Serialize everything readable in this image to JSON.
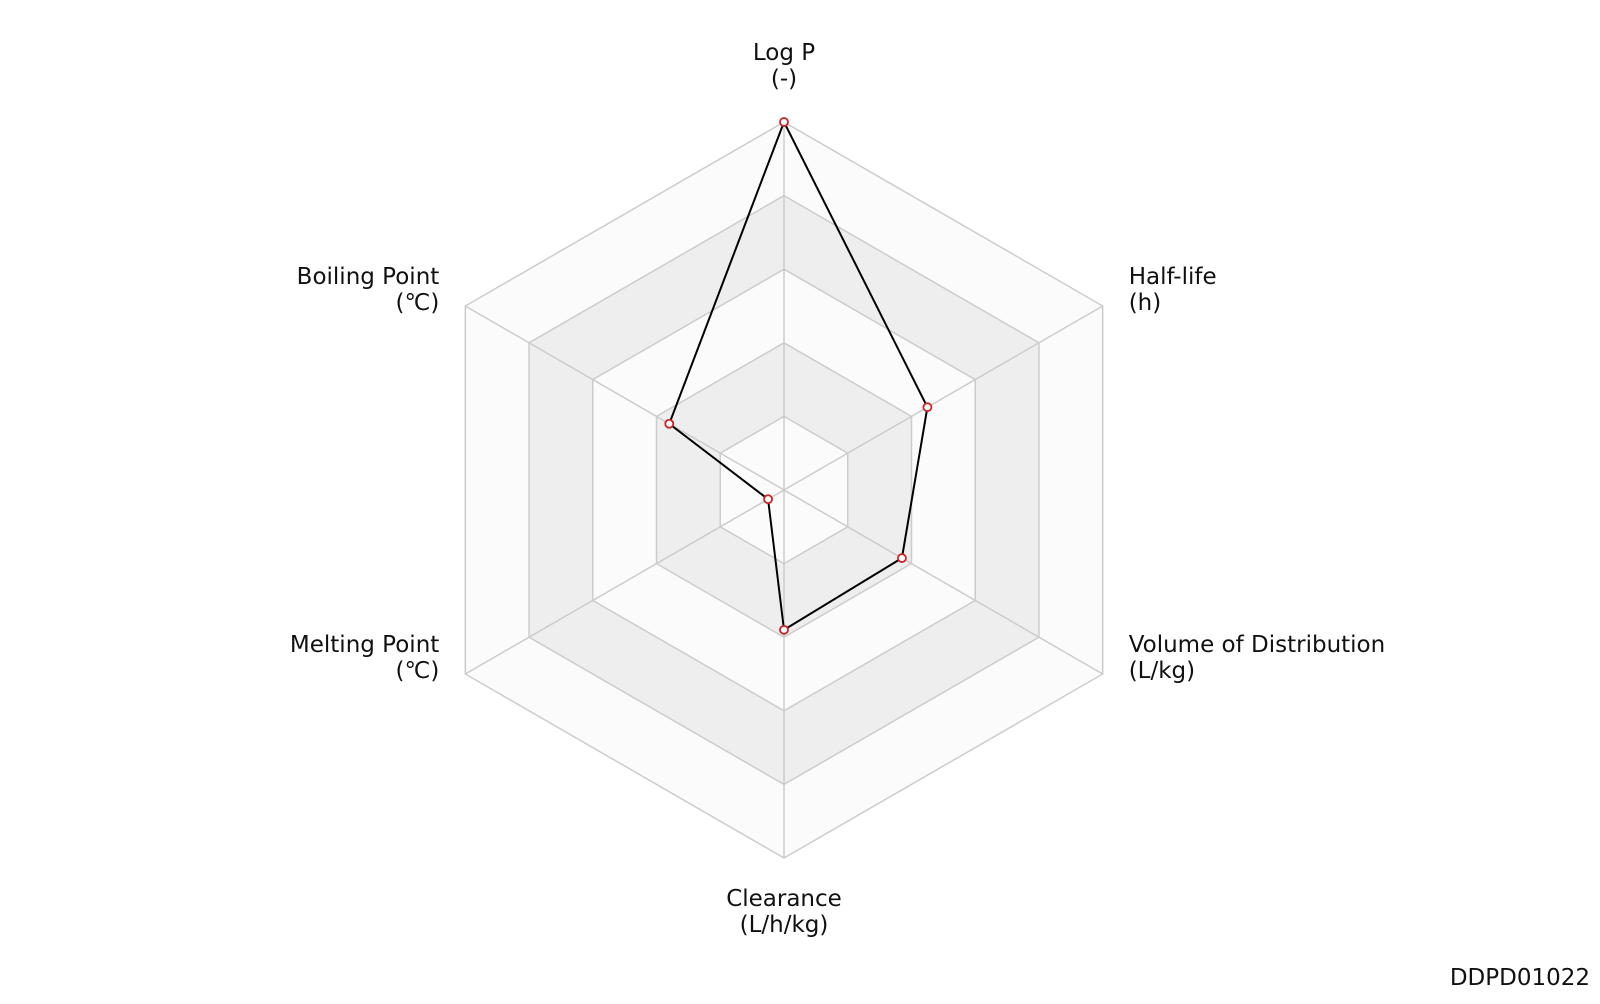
{
  "chart_data": {
    "type": "radar",
    "axes": [
      {
        "name": "Log P",
        "unit": "(-)"
      },
      {
        "name": "Half-life",
        "unit": "(h)"
      },
      {
        "name": "Volume of Distribution",
        "unit": "(L/kg)"
      },
      {
        "name": "Clearance",
        "unit": "(L/h/kg)"
      },
      {
        "name": "Melting Point",
        "unit": "(℃)"
      },
      {
        "name": "Boiling Point",
        "unit": "(℃)"
      }
    ],
    "values": [
      1.0,
      0.45,
      0.37,
      0.38,
      0.05,
      0.36
    ],
    "rlim": [
      0,
      1
    ],
    "rings": 5,
    "line_color": "#000000",
    "marker_color": "#cc2222",
    "band_colors": [
      "#fbfbfb",
      "#eeeeee"
    ]
  },
  "footer": {
    "id": "DDPD01022"
  }
}
